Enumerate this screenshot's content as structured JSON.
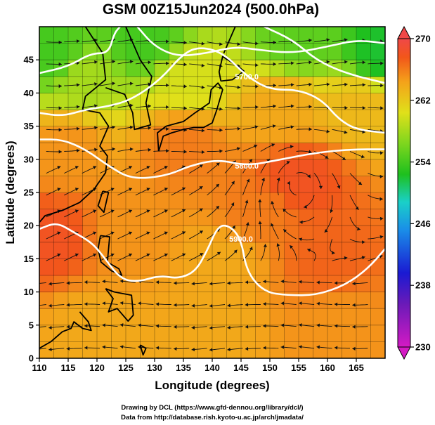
{
  "chart_data": {
    "type": "heatmap",
    "title": "GSM 00Z15Jun2024 (500.0hPa)",
    "xlabel": "Longitude (degrees)",
    "ylabel": "Latitude  (degrees)",
    "xlim": [
      110,
      170
    ],
    "ylim": [
      0,
      50
    ],
    "x_ticks": [
      "110",
      "115",
      "120",
      "125",
      "130",
      "135",
      "140",
      "145",
      "150",
      "155",
      "160",
      "165"
    ],
    "y_ticks": [
      "0",
      "5",
      "10",
      "15",
      "20",
      "25",
      "30",
      "35",
      "40",
      "45"
    ],
    "grid": true,
    "colorbar": {
      "min": 230,
      "max": 270,
      "ticks": [
        "230",
        "238",
        "246",
        "254",
        "262",
        "270"
      ],
      "position": "right"
    },
    "contours": [
      {
        "label": "5900.0",
        "points": [
          [
            110,
            19.5
          ],
          [
            113,
            20.5
          ],
          [
            116,
            19
          ],
          [
            119,
            17.5
          ],
          [
            121,
            15.5
          ],
          [
            124,
            12
          ],
          [
            127,
            11.5
          ],
          [
            131,
            12.5
          ],
          [
            134,
            12
          ],
          [
            137,
            13
          ],
          [
            139,
            16
          ],
          [
            141,
            20
          ],
          [
            143,
            20
          ],
          [
            145,
            18
          ],
          [
            146,
            13
          ],
          [
            149,
            10
          ],
          [
            153,
            9.5
          ],
          [
            158,
            9.5
          ],
          [
            163,
            11
          ],
          [
            167,
            13.5
          ],
          [
            170,
            16.5
          ]
        ]
      },
      {
        "label": "5800.0",
        "points": [
          [
            110,
            33
          ],
          [
            114,
            33
          ],
          [
            118,
            31.5
          ],
          [
            122,
            29
          ],
          [
            126,
            27
          ],
          [
            132,
            27.5
          ],
          [
            136,
            29
          ],
          [
            141,
            30
          ],
          [
            146,
            29
          ],
          [
            152,
            30
          ],
          [
            158,
            31
          ],
          [
            164,
            31.5
          ],
          [
            170,
            31.5
          ]
        ]
      },
      {
        "label": "5700.0",
        "points": [
          [
            110,
            37
          ],
          [
            114,
            36.5
          ],
          [
            118,
            37.5
          ],
          [
            122,
            38
          ],
          [
            126,
            39
          ],
          [
            131,
            42
          ],
          [
            135,
            46
          ],
          [
            138,
            47
          ],
          [
            142,
            46
          ],
          [
            146,
            42.5
          ],
          [
            150,
            40.5
          ],
          [
            155,
            40.5
          ],
          [
            159,
            39
          ],
          [
            162,
            36
          ],
          [
            165,
            34.5
          ],
          [
            170,
            34
          ]
        ]
      },
      {
        "label": "",
        "points": [
          [
            110,
            43
          ],
          [
            115,
            44
          ],
          [
            119,
            46
          ],
          [
            122,
            46
          ],
          [
            123,
            49
          ],
          [
            124,
            50
          ]
        ]
      },
      {
        "label": "",
        "points": [
          [
            127,
            50
          ],
          [
            130,
            47
          ],
          [
            134,
            45.5
          ],
          [
            139,
            46
          ],
          [
            144,
            47
          ],
          [
            148,
            46.5
          ],
          [
            154,
            46
          ],
          [
            160,
            47
          ],
          [
            165,
            48
          ],
          [
            170,
            47.5
          ]
        ]
      },
      {
        "label": "",
        "points": [
          [
            149,
            50
          ],
          [
            154,
            48
          ],
          [
            158,
            45
          ],
          [
            163,
            43
          ],
          [
            170,
            41.5
          ]
        ]
      }
    ],
    "field_centers": [
      {
        "lon": 112,
        "lat": 46,
        "value": 254
      },
      {
        "lon": 128,
        "lat": 48,
        "value": 254
      },
      {
        "lon": 155,
        "lat": 48,
        "value": 255
      },
      {
        "lon": 170,
        "lat": 46,
        "value": 252
      },
      {
        "lon": 118,
        "lat": 42,
        "value": 258
      },
      {
        "lon": 136,
        "lat": 42,
        "value": 260
      },
      {
        "lon": 152,
        "lat": 38,
        "value": 264
      },
      {
        "lon": 166,
        "lat": 38,
        "value": 263
      },
      {
        "lon": 115,
        "lat": 32,
        "value": 265
      },
      {
        "lon": 135,
        "lat": 32,
        "value": 266
      },
      {
        "lon": 155,
        "lat": 27,
        "value": 268
      },
      {
        "lon": 148,
        "lat": 22,
        "value": 266
      },
      {
        "lon": 112,
        "lat": 18,
        "value": 268
      },
      {
        "lon": 125,
        "lat": 18,
        "value": 265
      },
      {
        "lon": 142,
        "lat": 15,
        "value": 264
      },
      {
        "lon": 160,
        "lat": 15,
        "value": 267
      },
      {
        "lon": 120,
        "lat": 5,
        "value": 264
      },
      {
        "lon": 140,
        "lat": 5,
        "value": 264
      },
      {
        "lon": 162,
        "lat": 5,
        "value": 265
      }
    ]
  },
  "credits": {
    "line1": "Drawing by DCL (https://www.gfd-dennou.org/library/dcl/)",
    "line2": "Data from http://database.rish.kyoto-u.ac.jp/arch/jmadata/"
  },
  "colors": {
    "background": "#ffffff",
    "contour": "#ffffff",
    "coastline": "#000000",
    "streamline": "#000000"
  }
}
